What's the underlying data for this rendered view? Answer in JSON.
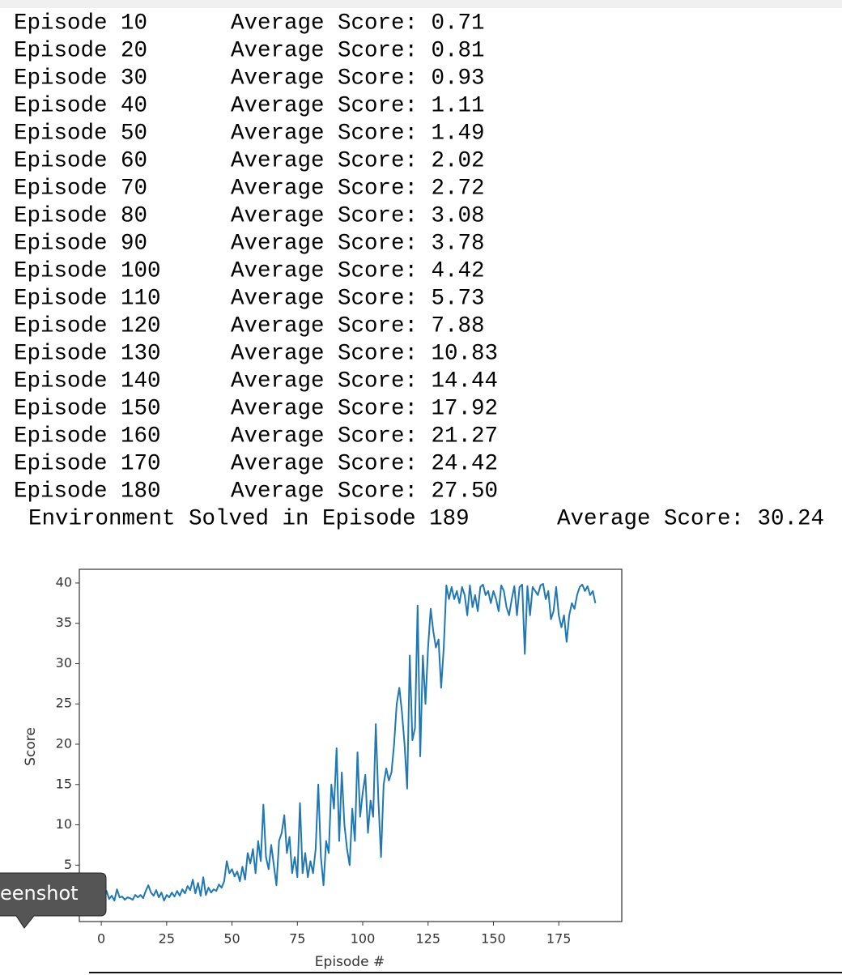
{
  "log": {
    "lines": [
      {
        "episode": "Episode 10",
        "score": "Average Score: 0.71"
      },
      {
        "episode": "Episode 20",
        "score": "Average Score: 0.81"
      },
      {
        "episode": "Episode 30",
        "score": "Average Score: 0.93"
      },
      {
        "episode": "Episode 40",
        "score": "Average Score: 1.11"
      },
      {
        "episode": "Episode 50",
        "score": "Average Score: 1.49"
      },
      {
        "episode": "Episode 60",
        "score": "Average Score: 2.02"
      },
      {
        "episode": "Episode 70",
        "score": "Average Score: 2.72"
      },
      {
        "episode": "Episode 80",
        "score": "Average Score: 3.08"
      },
      {
        "episode": "Episode 90",
        "score": "Average Score: 3.78"
      },
      {
        "episode": "Episode 100",
        "score": "Average Score: 4.42"
      },
      {
        "episode": "Episode 110",
        "score": "Average Score: 5.73"
      },
      {
        "episode": "Episode 120",
        "score": "Average Score: 7.88"
      },
      {
        "episode": "Episode 130",
        "score": "Average Score: 10.83"
      },
      {
        "episode": "Episode 140",
        "score": "Average Score: 14.44"
      },
      {
        "episode": "Episode 150",
        "score": "Average Score: 17.92"
      },
      {
        "episode": "Episode 160",
        "score": "Average Score: 21.27"
      },
      {
        "episode": "Episode 170",
        "score": "Average Score: 24.42"
      },
      {
        "episode": "Episode 180",
        "score": "Average Score: 27.50"
      }
    ],
    "solved": {
      "episode": "Environment Solved in Episode 189",
      "score": "Average Score: 30.24"
    }
  },
  "chart_data": {
    "type": "line",
    "xlabel": "Episode #",
    "ylabel": "Score",
    "color": "#1f77b4",
    "xlim": [
      -8.4,
      199.1
    ],
    "xticks": [
      0,
      25,
      50,
      75,
      100,
      125,
      150,
      175
    ],
    "ylim": [
      -2.0,
      41.7
    ],
    "yticks": [
      5,
      10,
      15,
      20,
      25,
      30,
      35,
      40
    ],
    "grid": false,
    "x": [
      0,
      1,
      2,
      3,
      4,
      5,
      6,
      7,
      8,
      9,
      10,
      11,
      12,
      13,
      14,
      15,
      16,
      17,
      18,
      19,
      20,
      21,
      22,
      23,
      24,
      25,
      26,
      27,
      28,
      29,
      30,
      31,
      32,
      33,
      34,
      35,
      36,
      37,
      38,
      39,
      40,
      41,
      42,
      43,
      44,
      45,
      46,
      47,
      48,
      49,
      50,
      51,
      52,
      53,
      54,
      55,
      56,
      57,
      58,
      59,
      60,
      61,
      62,
      63,
      64,
      65,
      66,
      67,
      68,
      69,
      70,
      71,
      72,
      73,
      74,
      75,
      76,
      77,
      78,
      79,
      80,
      81,
      82,
      83,
      84,
      85,
      86,
      87,
      88,
      89,
      90,
      91,
      92,
      93,
      94,
      95,
      96,
      97,
      98,
      99,
      100,
      101,
      102,
      103,
      104,
      105,
      106,
      107,
      108,
      109,
      110,
      111,
      112,
      113,
      114,
      115,
      116,
      117,
      118,
      119,
      120,
      121,
      122,
      123,
      124,
      125,
      126,
      127,
      128,
      129,
      130,
      131,
      132,
      133,
      134,
      135,
      136,
      137,
      138,
      139,
      140,
      141,
      142,
      143,
      144,
      145,
      146,
      147,
      148,
      149,
      150,
      151,
      152,
      153,
      154,
      155,
      156,
      157,
      158,
      159,
      160,
      161,
      162,
      163,
      164,
      165,
      166,
      167,
      168,
      169,
      170,
      171,
      172,
      173,
      174,
      175,
      176,
      177,
      178,
      179,
      180,
      181,
      182,
      183,
      184,
      185,
      186,
      187,
      188,
      189
    ],
    "values": [
      1.5,
      1.0,
      1.8,
      0.8,
      1.2,
      0.6,
      2.0,
      1.0,
      1.1,
      0.7,
      1.0,
      0.9,
      0.7,
      1.3,
      1.0,
      1.3,
      0.9,
      1.8,
      2.5,
      1.6,
      1.2,
      1.9,
      1.0,
      1.6,
      0.6,
      1.3,
      1.0,
      1.6,
      1.1,
      1.8,
      1.2,
      2.0,
      1.5,
      2.4,
      1.9,
      3.2,
      1.5,
      2.8,
      1.2,
      3.5,
      1.3,
      2.2,
      1.6,
      2.0,
      1.8,
      2.6,
      2.2,
      3.0,
      5.5,
      4.0,
      4.5,
      3.6,
      4.2,
      3.0,
      4.8,
      3.2,
      6.5,
      5.2,
      7.0,
      4.0,
      8.0,
      5.5,
      12.5,
      6.0,
      4.5,
      7.5,
      5.0,
      2.5,
      8.0,
      9.0,
      11.2,
      6.5,
      8.5,
      4.0,
      6.0,
      3.5,
      12.7,
      4.0,
      6.5,
      3.5,
      5.5,
      4.0,
      7.0,
      15.0,
      6.0,
      2.5,
      8.0,
      6.5,
      15.0,
      12.0,
      19.5,
      8.0,
      16.5,
      10.0,
      7.0,
      5.0,
      12.0,
      8.0,
      19.0,
      11.0,
      14.0,
      16.2,
      9.0,
      13.0,
      11.0,
      22.5,
      13.0,
      6.0,
      15.0,
      17.0,
      15.5,
      16.5,
      20.0,
      25.0,
      27.0,
      24.0,
      20.0,
      14.5,
      31.0,
      20.5,
      22.0,
      37.2,
      18.5,
      31.0,
      25.0,
      32.0,
      36.8,
      34.0,
      32.0,
      33.0,
      27.0,
      32.0,
      39.7,
      38.0,
      39.5,
      38.0,
      39.0,
      37.5,
      39.5,
      38.5,
      36.0,
      39.7,
      37.0,
      38.5,
      36.5,
      39.5,
      39.8,
      38.5,
      39.0,
      37.5,
      39.0,
      38.0,
      36.5,
      39.7,
      39.0,
      37.0,
      36.0,
      38.0,
      39.6,
      36.0,
      39.5,
      39.8,
      31.2,
      39.6,
      36.0,
      39.5,
      39.0,
      38.5,
      39.7,
      39.9,
      38.0,
      39.0,
      35.5,
      36.5,
      39.5,
      36.0,
      34.5,
      36.0,
      32.7,
      36.0,
      37.5,
      36.8,
      38.5,
      39.5,
      39.8,
      39.0,
      39.6,
      38.5,
      39.0,
      37.5
    ]
  },
  "tooltip": "eenshot"
}
